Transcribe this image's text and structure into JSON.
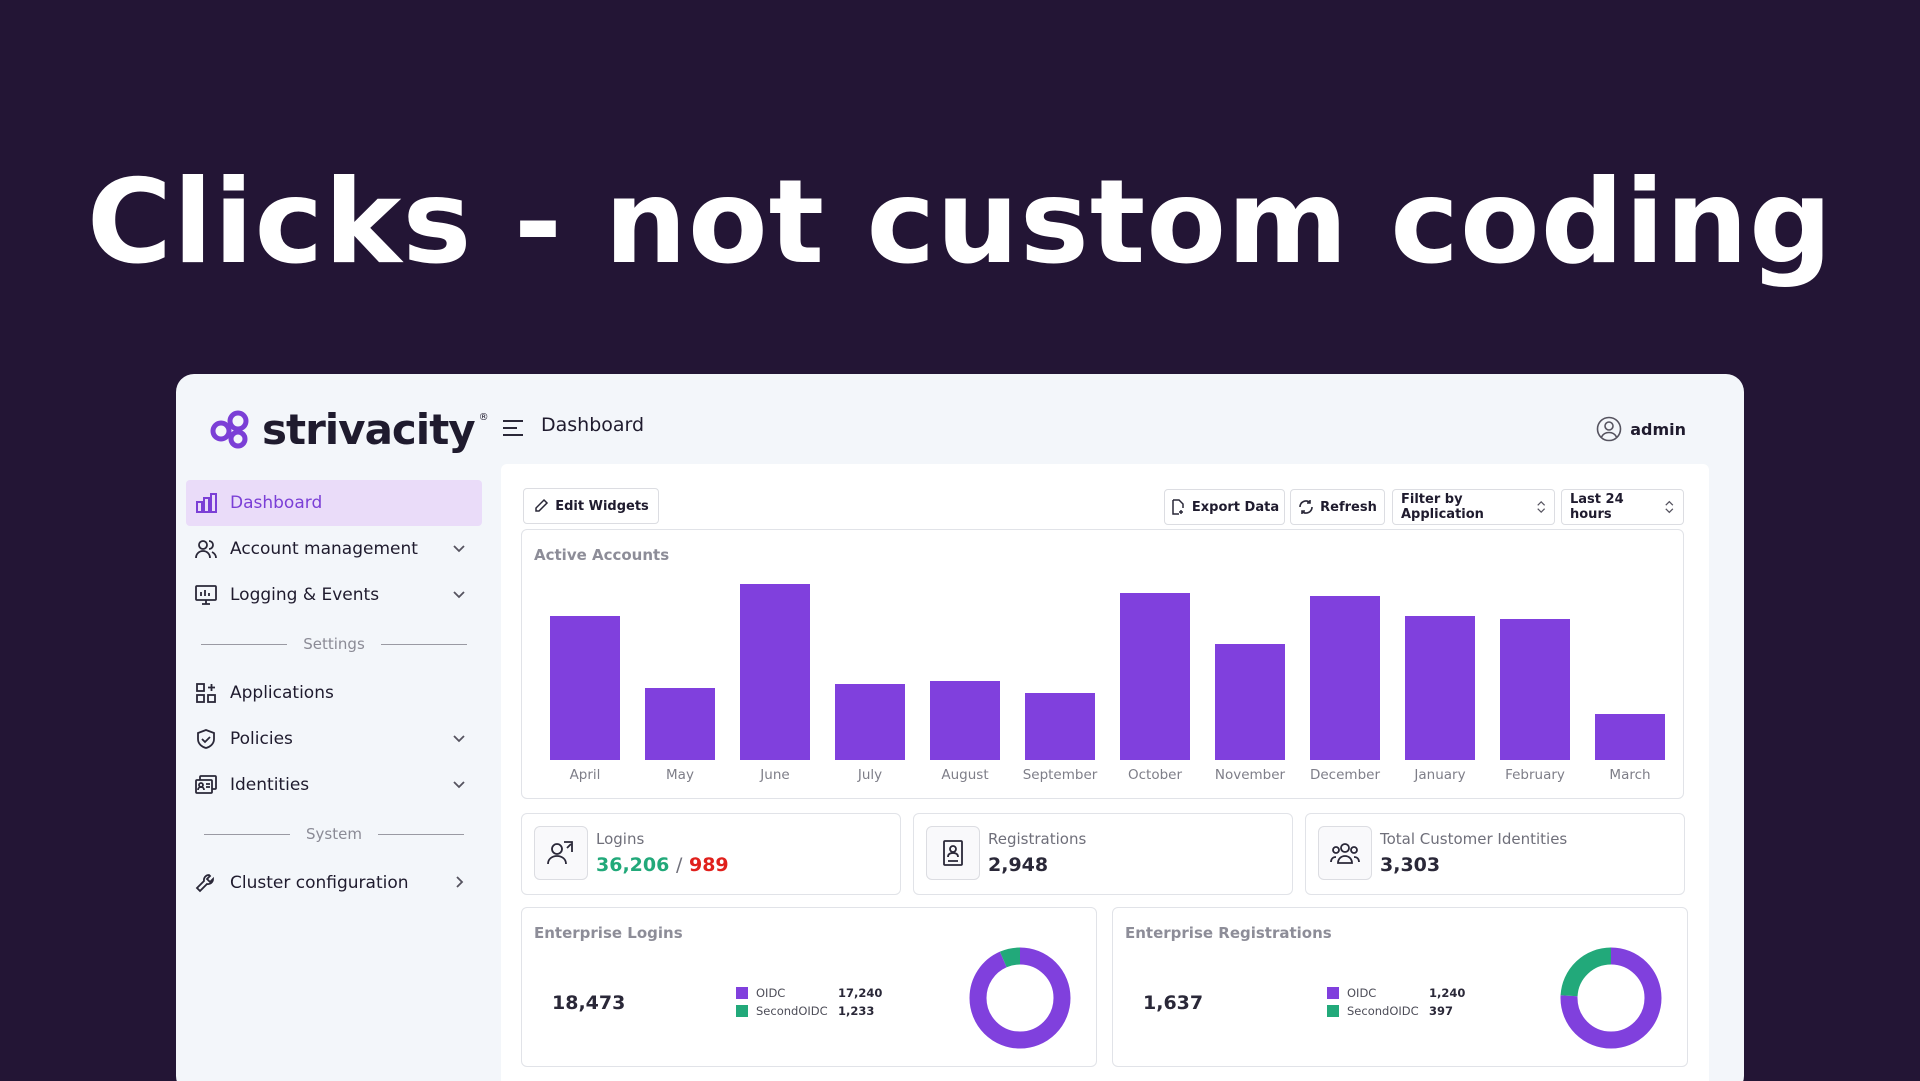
{
  "headline": "Clicks - not custom coding",
  "brand": {
    "name": "strivacity",
    "tm": "®",
    "accent": "#8040dd",
    "bg": "#231535"
  },
  "sidebar": {
    "items": [
      {
        "label": "Dashboard",
        "icon": "bar-chart-icon",
        "active": true
      },
      {
        "label": "Account management",
        "icon": "users-icon",
        "expandable": true
      },
      {
        "label": "Logging & Events",
        "icon": "monitor-icon",
        "expandable": true
      }
    ],
    "settings_label": "Settings",
    "settings_items": [
      {
        "label": "Applications",
        "icon": "apps-icon"
      },
      {
        "label": "Policies",
        "icon": "shield-icon",
        "expandable": true
      },
      {
        "label": "Identities",
        "icon": "identity-card-icon",
        "expandable": true
      }
    ],
    "system_label": "System",
    "system_items": [
      {
        "label": "Cluster configuration",
        "icon": "wrench-icon"
      }
    ]
  },
  "header": {
    "title": "Dashboard",
    "user": "admin"
  },
  "toolbar": {
    "edit_widgets": "Edit Widgets",
    "export_data": "Export Data",
    "refresh": "Refresh",
    "filter_by_application": "Filter by Application",
    "time_range": "Last 24 hours"
  },
  "chart_data": {
    "type": "bar",
    "title": "Active Accounts",
    "categories": [
      "April",
      "May",
      "June",
      "July",
      "August",
      "September",
      "October",
      "November",
      "December",
      "January",
      "February",
      "March"
    ],
    "values": [
      82,
      41,
      100,
      43,
      45,
      38,
      95,
      66,
      93,
      82,
      80,
      26
    ],
    "color": "#8040dd"
  },
  "stats": {
    "logins": {
      "label": "Logins",
      "success": "36,206",
      "separator": "/",
      "failed": "989"
    },
    "registrations": {
      "label": "Registrations",
      "value": "2,948"
    },
    "total_identities": {
      "label": "Total Customer Identities",
      "value": "3,303"
    }
  },
  "enterprise_logins": {
    "title": "Enterprise Logins",
    "total": "18,473",
    "series": [
      {
        "name": "OIDC",
        "value": 17240,
        "display": "17,240",
        "color": "#8040dd"
      },
      {
        "name": "SecondOIDC",
        "value": 1233,
        "display": "1,233",
        "color": "#22a97a"
      }
    ]
  },
  "enterprise_registrations": {
    "title": "Enterprise Registrations",
    "total": "1,637",
    "series": [
      {
        "name": "OIDC",
        "value": 1240,
        "display": "1,240",
        "color": "#8040dd"
      },
      {
        "name": "SecondOIDC",
        "value": 397,
        "display": "397",
        "color": "#22a97a"
      }
    ]
  }
}
